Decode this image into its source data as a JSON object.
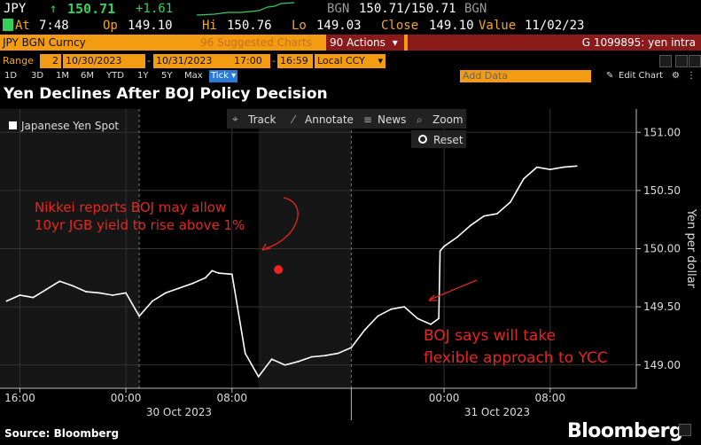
{
  "header": {
    "ticker": "JPY",
    "arrow": "↑",
    "last": "150.71",
    "change": "+1.61",
    "source": "BGN",
    "bid_ask": "150.71/150.71",
    "source2": "BGN",
    "at_label": "At",
    "time": "7:48",
    "op_label": "Op",
    "open": "149.10",
    "hi_label": "Hi",
    "high": "150.76",
    "lo_label": "Lo",
    "low": "149.03",
    "close_label": "Close",
    "close": "149.10",
    "value_label": "Value",
    "date": "11/02/23"
  },
  "toolbar": {
    "security": "JPY BGN Curncy",
    "suggested": "96 Suggested Charts",
    "actions": "90 Actions",
    "actions_arrow": "▾",
    "function": "G 1099895: yen intra"
  },
  "range": {
    "label": "Range",
    "num": "2",
    "start_date": "10/30/2023",
    "end_date": "10/31/2023",
    "start_time": "17:00",
    "end_time": "16:59",
    "tz": "Local CCY"
  },
  "periods": [
    "1D",
    "3D",
    "1M",
    "6M",
    "YTD",
    "1Y",
    "5Y",
    "Max",
    "Tick"
  ],
  "active_period": "Tick",
  "add_data": "Add Data",
  "edit_chart": "Edit Chart",
  "title": "Yen Declines After BOJ Policy Decision",
  "chart_tools": {
    "track": "Track",
    "annotate": "Annotate",
    "news": "News",
    "zoom": "Zoom",
    "reset": "Reset"
  },
  "footer": {
    "source": "Source: Bloomberg",
    "brand": "Bloomberg"
  },
  "colors": {
    "accent_orange": "#f39c12",
    "line": "#ffffff",
    "annotation": "#e8261f",
    "up_green": "#35d05a"
  },
  "chart_data": {
    "type": "line",
    "legend": "Japanese Yen Spot",
    "ylabel": "Yen per dollar",
    "ylim": [
      148.8,
      151.2
    ],
    "yticks": [
      "151.00",
      "150.50",
      "150.00",
      "149.50",
      "149.00"
    ],
    "ytick_values": [
      151.0,
      150.5,
      150.0,
      149.5,
      149.0
    ],
    "xticks": [
      "16:00",
      "00:00",
      "08:00",
      "00:00",
      "08:00"
    ],
    "xtick_hours": [
      0,
      8,
      16,
      32,
      40
    ],
    "date_labels": [
      "30 Oct 2023",
      "31 Oct 2023"
    ],
    "date_label_hours": [
      12,
      36
    ],
    "xlim_hours": [
      -1.5,
      46.5
    ],
    "x_hours_from_1600_oct29": [
      -1,
      0,
      1,
      2,
      3,
      4,
      5,
      6,
      7,
      8,
      9,
      10,
      11,
      12,
      13,
      14,
      14.5,
      15,
      16,
      17,
      18,
      19,
      19.6,
      20,
      21,
      22,
      23,
      24,
      25,
      26,
      27,
      28,
      29,
      30,
      31,
      31.6,
      31.7,
      32,
      33,
      34,
      35,
      36,
      37,
      38,
      39,
      40,
      41,
      42
    ],
    "values": [
      149.55,
      149.6,
      149.58,
      149.65,
      149.72,
      149.68,
      149.63,
      149.62,
      149.6,
      149.62,
      149.42,
      149.55,
      149.62,
      149.66,
      149.7,
      149.75,
      149.81,
      149.79,
      149.78,
      149.1,
      148.9,
      149.05,
      149.02,
      149.0,
      149.03,
      149.07,
      149.08,
      149.1,
      149.15,
      149.3,
      149.42,
      149.48,
      149.5,
      149.4,
      149.35,
      149.4,
      149.98,
      150.02,
      150.1,
      150.2,
      150.28,
      150.3,
      150.4,
      150.6,
      150.7,
      150.68,
      150.7,
      150.71
    ],
    "highlight": {
      "x_hour": 19.5,
      "value": 149.82,
      "color": "#e8261f"
    },
    "annotations": [
      {
        "text": [
          "Nikkei reports BOJ may allow",
          "10yr JGB yield to rise above 1%"
        ],
        "color": "#e8261f"
      },
      {
        "text": [
          "BOJ says will take",
          "flexible approach to YCC"
        ],
        "color": "#e8261f"
      }
    ],
    "shaded_regions_hours": [
      [
        -1.5,
        9
      ],
      [
        18,
        25
      ]
    ]
  }
}
